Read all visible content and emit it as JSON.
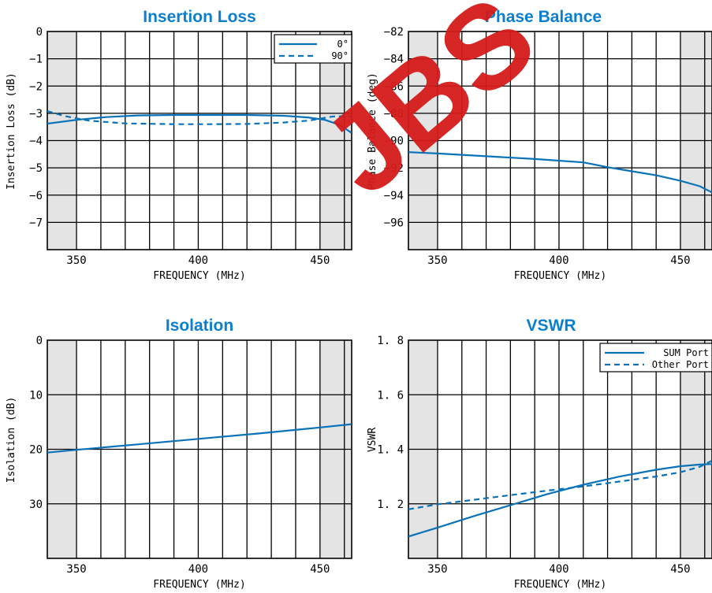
{
  "accent_color": "#0a72b8",
  "title_color": "#0a7fd0",
  "band_color": "#e4e4e4",
  "watermark": "JBS",
  "chart_data": [
    {
      "id": "il",
      "type": "line",
      "title": "Insertion Loss",
      "xlabel": "FREQUENCY (MHz)",
      "ylabel": "Insertion Loss (dB)",
      "xlim": [
        338,
        463
      ],
      "ylim": [
        -8,
        0
      ],
      "xticks": [
        350,
        400,
        450
      ],
      "yticks": [
        0,
        -1,
        -2,
        -3,
        -4,
        -5,
        -6,
        -7
      ],
      "ytick_labels": [
        "0",
        "−1",
        "−2",
        "−3",
        "−4",
        "−5",
        "−6",
        "−7"
      ],
      "bands": [
        [
          338,
          350
        ],
        [
          450,
          463
        ]
      ],
      "grid": true,
      "legend_position": "top-right",
      "series": [
        {
          "name": "0°",
          "dash": false,
          "x": [
            338,
            350,
            362,
            375,
            390,
            405,
            420,
            435,
            445,
            452,
            458,
            463
          ],
          "y": [
            -3.38,
            -3.24,
            -3.14,
            -3.08,
            -3.06,
            -3.06,
            -3.06,
            -3.09,
            -3.15,
            -3.24,
            -3.42,
            -3.72
          ]
        },
        {
          "name": "90°",
          "dash": true,
          "x": [
            338,
            345,
            355,
            370,
            390,
            405,
            420,
            435,
            445,
            450,
            455,
            463
          ],
          "y": [
            -2.92,
            -3.1,
            -3.27,
            -3.37,
            -3.4,
            -3.4,
            -3.39,
            -3.34,
            -3.27,
            -3.2,
            -3.12,
            -3.1
          ]
        }
      ]
    },
    {
      "id": "pb",
      "type": "line",
      "title": "Phase Balance",
      "xlabel": "FREQUENCY (MHz)",
      "ylabel": "Phase Balance (deg)",
      "xlim": [
        338,
        463
      ],
      "ylim": [
        -98,
        -82
      ],
      "xticks": [
        350,
        400,
        450
      ],
      "yticks": [
        -82,
        -84,
        -86,
        -88,
        -90,
        -92,
        -94,
        -96
      ],
      "ytick_labels": [
        "−82",
        "−84",
        "−86",
        "−88",
        "−90",
        "−92",
        "−94",
        "−96"
      ],
      "bands": [
        [
          338,
          350
        ],
        [
          450,
          463
        ]
      ],
      "grid": true,
      "series": [
        {
          "name": "",
          "dash": false,
          "x": [
            338,
            350,
            370,
            390,
            410,
            420,
            430,
            440,
            450,
            458,
            463
          ],
          "y": [
            -90.85,
            -90.95,
            -91.15,
            -91.35,
            -91.6,
            -91.95,
            -92.25,
            -92.55,
            -92.95,
            -93.35,
            -93.8
          ]
        }
      ]
    },
    {
      "id": "iso",
      "type": "line",
      "title": "Isolation",
      "xlabel": "FREQUENCY (MHz)",
      "ylabel": "Isolation (dB)",
      "xlim": [
        338,
        463
      ],
      "ylim": [
        40,
        0
      ],
      "xticks": [
        350,
        400,
        450
      ],
      "yticks": [
        0,
        10,
        20,
        30
      ],
      "ytick_labels": [
        "0",
        "10",
        "20",
        "30"
      ],
      "bands": [
        [
          338,
          350
        ],
        [
          450,
          463
        ]
      ],
      "grid": true,
      "series": [
        {
          "name": "",
          "dash": false,
          "x": [
            338,
            350,
            375,
            400,
            425,
            450,
            463
          ],
          "y": [
            20.6,
            20.1,
            19.1,
            18.1,
            17.1,
            16.0,
            15.4
          ]
        }
      ]
    },
    {
      "id": "vswr",
      "type": "line",
      "title": "VSWR",
      "xlabel": "FREQUENCY (MHz)",
      "ylabel": "VSWR",
      "xlim": [
        338,
        463
      ],
      "ylim": [
        1.0,
        1.8
      ],
      "xticks": [
        350,
        400,
        450
      ],
      "yticks": [
        1.8,
        1.6,
        1.4,
        1.2
      ],
      "ytick_labels": [
        "1. 8",
        "1. 6",
        "1. 4",
        "1. 2"
      ],
      "bands": [
        [
          338,
          350
        ],
        [
          450,
          463
        ]
      ],
      "grid": true,
      "legend_position": "top-right",
      "series": [
        {
          "name": "SUM Port",
          "dash": false,
          "x": [
            338,
            350,
            365,
            380,
            395,
            410,
            425,
            440,
            450,
            458,
            463
          ],
          "y": [
            1.08,
            1.113,
            1.155,
            1.195,
            1.235,
            1.27,
            1.3,
            1.325,
            1.338,
            1.344,
            1.346
          ]
        },
        {
          "name": "Other Port",
          "dash": true,
          "x": [
            338,
            350,
            365,
            380,
            395,
            410,
            425,
            440,
            450,
            458,
            463
          ],
          "y": [
            1.18,
            1.198,
            1.215,
            1.232,
            1.248,
            1.264,
            1.282,
            1.3,
            1.316,
            1.336,
            1.358
          ]
        }
      ]
    }
  ]
}
